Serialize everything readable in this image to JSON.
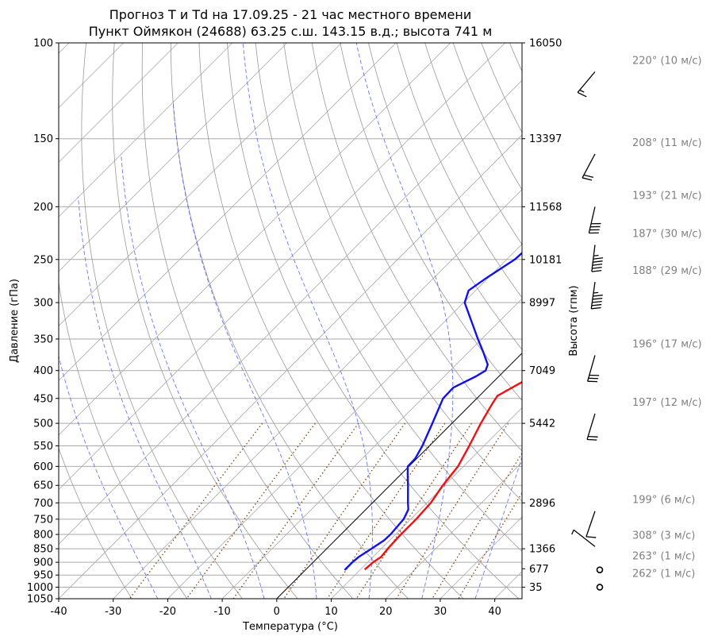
{
  "title_line1": "Прогноз T и Td на 17.09.25 - 21 час местного времени",
  "title_line2": "Пункт Оймякон (24688) 63.25 с.ш. 143.15 в.д.; высота 741 м",
  "chart_data": {
    "type": "line",
    "title": "Прогноз T и Td на 17.09.25 - 21 час местного времени / Пункт Оймякон (24688) 63.25 с.ш. 143.15 в.д.; высота 741 м",
    "xlabel": "Температура (°C)",
    "ylabel": "Давление (гПа)",
    "y2label": "Высота (гпм)",
    "xlim": [
      -40,
      45
    ],
    "ylim": [
      1050,
      100
    ],
    "yscale": "log",
    "skew": 45,
    "x_ticks": [
      "-40",
      "-30",
      "-20",
      "-10",
      "0",
      "10",
      "20",
      "30",
      "40"
    ],
    "y_ticks": [
      "100",
      "150",
      "200",
      "250",
      "300",
      "350",
      "400",
      "450",
      "500",
      "550",
      "600",
      "650",
      "700",
      "750",
      "800",
      "850",
      "900",
      "950",
      "1000",
      "1050"
    ],
    "height_labels": [
      {
        "p": 100,
        "label": "16050"
      },
      {
        "p": 150,
        "label": "13397"
      },
      {
        "p": 200,
        "label": "11568"
      },
      {
        "p": 250,
        "label": "10181"
      },
      {
        "p": 300,
        "label": "8997"
      },
      {
        "p": 400,
        "label": "7049"
      },
      {
        "p": 500,
        "label": "5442"
      },
      {
        "p": 700,
        "label": "2896"
      },
      {
        "p": 850,
        "label": "1366"
      },
      {
        "p": 925,
        "label": "677"
      },
      {
        "p": 1000,
        "label": "35"
      }
    ],
    "series": [
      {
        "color": "#ee1111",
        "points": [
          [
            928,
            10.8
          ],
          [
            900,
            11.0
          ],
          [
            880,
            11.5
          ],
          [
            850,
            11.2
          ],
          [
            800,
            11.0
          ],
          [
            750,
            11.0
          ],
          [
            700,
            10.7
          ],
          [
            650,
            9.7
          ],
          [
            600,
            9.0
          ],
          [
            550,
            7.3
          ],
          [
            500,
            5.3
          ],
          [
            460,
            3.8
          ],
          [
            445,
            3.3
          ],
          [
            420,
            5.3
          ],
          [
            400,
            6.8
          ],
          [
            390,
            6.0
          ],
          [
            370,
            4.2
          ],
          [
            350,
            2.5
          ],
          [
            300,
            -2.7
          ],
          [
            280,
            -5.3
          ],
          [
            250,
            -7.3
          ],
          [
            230,
            -7.7
          ],
          [
            222,
            -7.5
          ],
          [
            215,
            -5.2
          ],
          [
            210,
            -3.4
          ],
          [
            200,
            0.6
          ],
          [
            185,
            6.5
          ],
          [
            175,
            11.5
          ],
          [
            162,
            17.0
          ],
          [
            150,
            22.0
          ],
          [
            130,
            30.0
          ],
          [
            113,
            37.0
          ],
          [
            100,
            45
          ]
        ]
      },
      {
        "color": "#1111ee",
        "points": [
          [
            930,
            7.2
          ],
          [
            900,
            7.2
          ],
          [
            880,
            7.4
          ],
          [
            850,
            8.2
          ],
          [
            820,
            9.0
          ],
          [
            800,
            9.1
          ],
          [
            750,
            8.7
          ],
          [
            720,
            7.8
          ],
          [
            700,
            6.5
          ],
          [
            650,
            3.3
          ],
          [
            620,
            1.2
          ],
          [
            600,
            -0.2
          ],
          [
            580,
            -0.3
          ],
          [
            550,
            -1.3
          ],
          [
            500,
            -3.6
          ],
          [
            450,
            -6.2
          ],
          [
            430,
            -6.3
          ],
          [
            410,
            -4.2
          ],
          [
            400,
            -3.5
          ],
          [
            390,
            -4.2
          ],
          [
            370,
            -7.3
          ],
          [
            350,
            -10.7
          ],
          [
            300,
            -19.8
          ],
          [
            285,
            -21.3
          ],
          [
            270,
            -20.3
          ],
          [
            250,
            -18.5
          ],
          [
            235,
            -18.2
          ],
          [
            225,
            -16.0
          ],
          [
            210,
            -16.4
          ],
          [
            205,
            -15.5
          ],
          [
            200,
            -14.0
          ],
          [
            185,
            -9.7
          ],
          [
            175,
            -6.0
          ],
          [
            162,
            0.0
          ],
          [
            150,
            2.7
          ],
          [
            135,
            6.0
          ],
          [
            120,
            10.0
          ],
          [
            100,
            16.5
          ]
        ]
      }
    ],
    "wind": [
      {
        "p": 113,
        "label": "220° (10 м/с)"
      },
      {
        "p": 160,
        "label": "208° (11 м/с)"
      },
      {
        "p": 200,
        "label": "193° (21 м/с)"
      },
      {
        "p": 235,
        "label": "187° (30 м/с)"
      },
      {
        "p": 275,
        "label": "188° (29 м/с)"
      },
      {
        "p": 375,
        "label": "196° (17 м/с)"
      },
      {
        "p": 480,
        "label": "197° (12 м/с)"
      },
      {
        "p": 725,
        "label": "199° (6 м/с)"
      },
      {
        "p": 842,
        "label": "308° (3 м/с)"
      },
      {
        "p": 920,
        "label": "263° (1 м/с)"
      },
      {
        "p": 990,
        "label": "262° (1 м/с)"
      }
    ]
  }
}
